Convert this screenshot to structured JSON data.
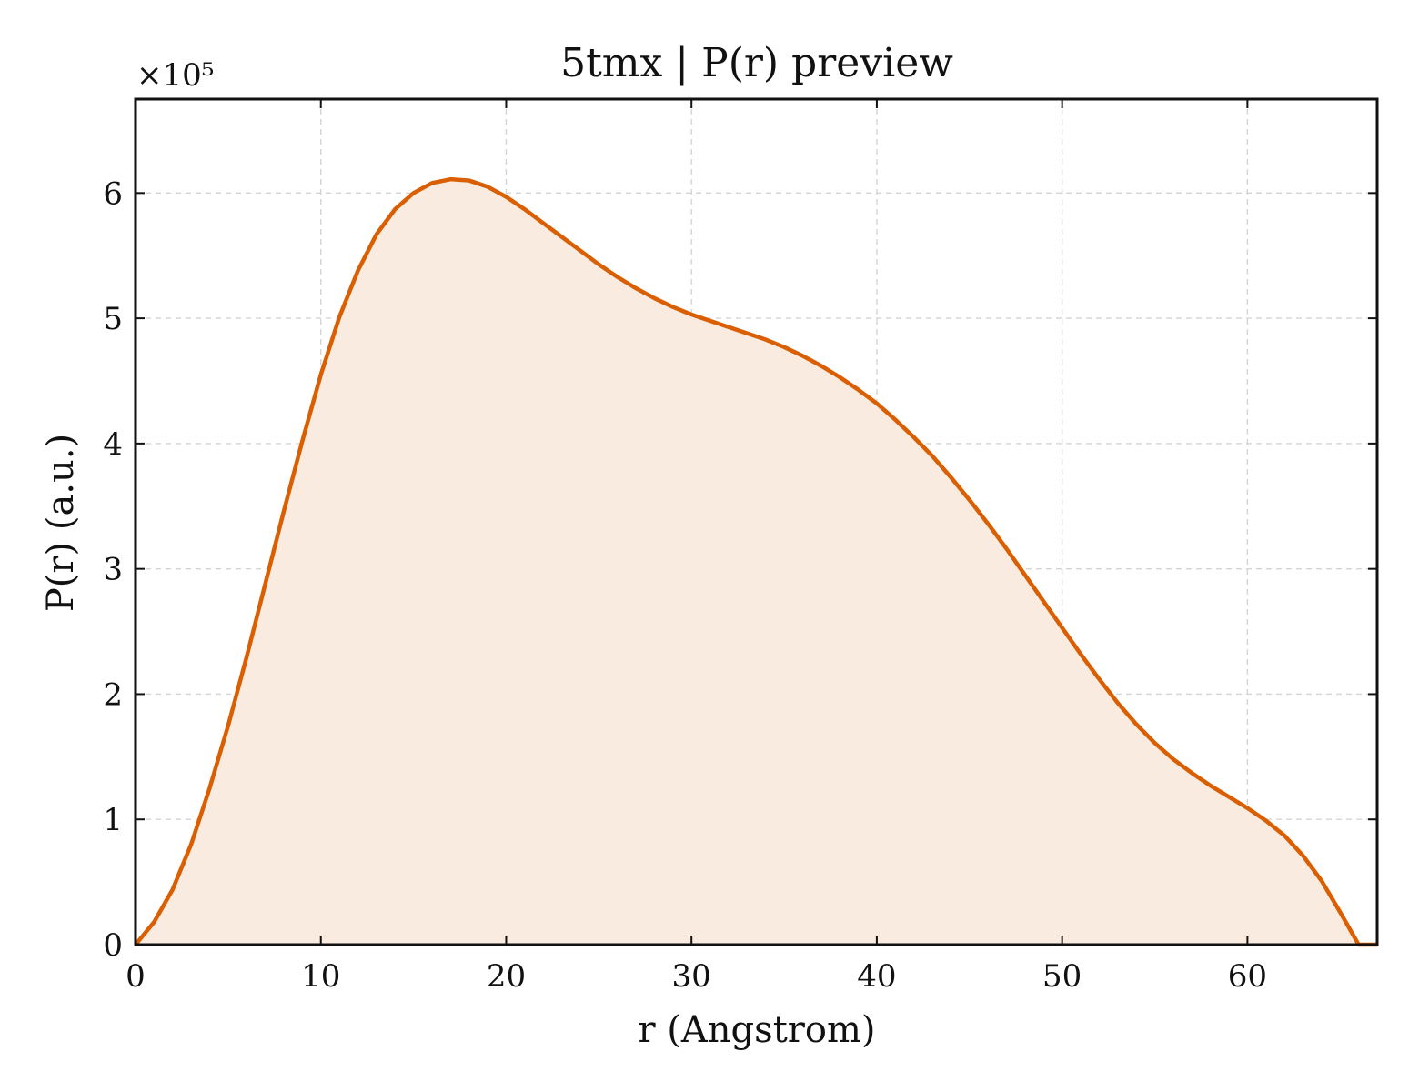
{
  "chart_data": {
    "type": "area",
    "title": "5tmx | P(r) preview",
    "xlabel": "r (Angstrom)",
    "ylabel": "P(r) (a.u.)",
    "y_multiplier_label": "×10⁵",
    "y_multiplier": 100000,
    "xlim": [
      0,
      67
    ],
    "ylim": [
      0,
      6.75
    ],
    "x_ticks": [
      0,
      10,
      20,
      30,
      40,
      50,
      60
    ],
    "y_ticks": [
      0,
      1,
      2,
      3,
      4,
      5,
      6
    ],
    "x_tick_labels": [
      "0",
      "10",
      "20",
      "30",
      "40",
      "50",
      "60"
    ],
    "y_tick_labels": [
      "0",
      "1",
      "2",
      "3",
      "4",
      "5",
      "6"
    ],
    "grid": true,
    "line_color": "#d95f02",
    "fill_color": "#f9ebe0",
    "series": [
      {
        "x": [
          0,
          1,
          2,
          3,
          4,
          5,
          6,
          7,
          8,
          9,
          10,
          11,
          12,
          13,
          14,
          15,
          16,
          17,
          18,
          19,
          20,
          21,
          22,
          23,
          24,
          25,
          26,
          27,
          28,
          29,
          30,
          31,
          32,
          33,
          34,
          35,
          36,
          37,
          38,
          39,
          40,
          41,
          42,
          43,
          44,
          45,
          46,
          47,
          48,
          49,
          50,
          51,
          52,
          53,
          54,
          55,
          56,
          57,
          58,
          59,
          60,
          61,
          62,
          63,
          64,
          65,
          66,
          67
        ],
        "values": [
          0,
          0.18,
          0.44,
          0.8,
          1.25,
          1.75,
          2.3,
          2.88,
          3.46,
          4.02,
          4.55,
          5.01,
          5.38,
          5.67,
          5.87,
          6.0,
          6.08,
          6.11,
          6.1,
          6.05,
          5.97,
          5.87,
          5.76,
          5.65,
          5.54,
          5.43,
          5.33,
          5.24,
          5.16,
          5.09,
          5.03,
          4.98,
          4.93,
          4.88,
          4.83,
          4.77,
          4.7,
          4.62,
          4.53,
          4.43,
          4.32,
          4.19,
          4.05,
          3.9,
          3.73,
          3.55,
          3.36,
          3.16,
          2.95,
          2.74,
          2.53,
          2.32,
          2.12,
          1.93,
          1.76,
          1.61,
          1.48,
          1.37,
          1.27,
          1.18,
          1.09,
          0.99,
          0.87,
          0.71,
          0.51,
          0.26,
          0.0,
          0.0
        ]
      }
    ]
  }
}
